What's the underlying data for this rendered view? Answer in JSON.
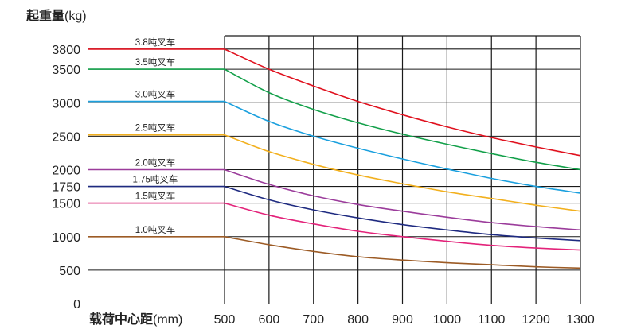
{
  "chart_data": {
    "type": "line",
    "title": "",
    "ylabel_bold": "起重量",
    "ylabel_unit": "(kg)",
    "xlabel_bold": "载荷中心距",
    "xlabel_unit": "(mm)",
    "xlim": [
      500,
      1300
    ],
    "ylim": [
      0,
      4000
    ],
    "x_ticks": [
      500,
      600,
      700,
      800,
      900,
      1000,
      1100,
      1200,
      1300
    ],
    "y_ticks": [
      0,
      500,
      1000,
      1500,
      1750,
      2000,
      2500,
      3000,
      3500,
      3800
    ],
    "grid": true,
    "series": [
      {
        "name": "3.8吨叉车",
        "color": "#e0111e",
        "rated": 3800,
        "x": [
          500,
          600,
          700,
          800,
          900,
          1000,
          1100,
          1200,
          1300
        ],
        "y": [
          3800,
          3500,
          3250,
          3020,
          2820,
          2640,
          2480,
          2340,
          2210
        ]
      },
      {
        "name": "3.5吨叉车",
        "color": "#13a04a",
        "rated": 3500,
        "x": [
          500,
          600,
          700,
          800,
          900,
          1000,
          1100,
          1200,
          1300
        ],
        "y": [
          3500,
          3150,
          2900,
          2700,
          2530,
          2380,
          2240,
          2110,
          2000
        ]
      },
      {
        "name": "3.0吨叉车",
        "color": "#1ba0de",
        "rated": 3020,
        "x": [
          500,
          600,
          700,
          800,
          900,
          1000,
          1100,
          1200,
          1300
        ],
        "y": [
          3020,
          2720,
          2500,
          2320,
          2160,
          2010,
          1870,
          1750,
          1650
        ]
      },
      {
        "name": "2.5吨叉车",
        "color": "#f2b01e",
        "rated": 2520,
        "x": [
          500,
          600,
          700,
          800,
          900,
          1000,
          1100,
          1200,
          1300
        ],
        "y": [
          2520,
          2270,
          2080,
          1920,
          1790,
          1670,
          1570,
          1470,
          1380
        ]
      },
      {
        "name": "2.0吨叉车",
        "color": "#9b3c9b",
        "rated": 2000,
        "x": [
          500,
          600,
          700,
          800,
          900,
          1000,
          1100,
          1200,
          1300
        ],
        "y": [
          2000,
          1780,
          1610,
          1480,
          1380,
          1290,
          1210,
          1150,
          1100
        ]
      },
      {
        "name": "1.75吨叉车",
        "color": "#1e2a80",
        "rated": 1750,
        "x": [
          500,
          600,
          700,
          800,
          900,
          1000,
          1100,
          1200,
          1300
        ],
        "y": [
          1750,
          1550,
          1400,
          1280,
          1180,
          1100,
          1030,
          980,
          940
        ]
      },
      {
        "name": "1.5吨叉车",
        "color": "#e3237a",
        "rated": 1500,
        "x": [
          500,
          600,
          700,
          800,
          900,
          1000,
          1100,
          1200,
          1300
        ],
        "y": [
          1500,
          1320,
          1190,
          1080,
          1000,
          930,
          870,
          830,
          800
        ]
      },
      {
        "name": "1.0吨叉车",
        "color": "#9c5b25",
        "rated": 1000,
        "x": [
          500,
          600,
          700,
          800,
          900,
          1000,
          1100,
          1200,
          1300
        ],
        "y": [
          1000,
          880,
          780,
          700,
          650,
          610,
          580,
          550,
          530
        ]
      }
    ]
  }
}
